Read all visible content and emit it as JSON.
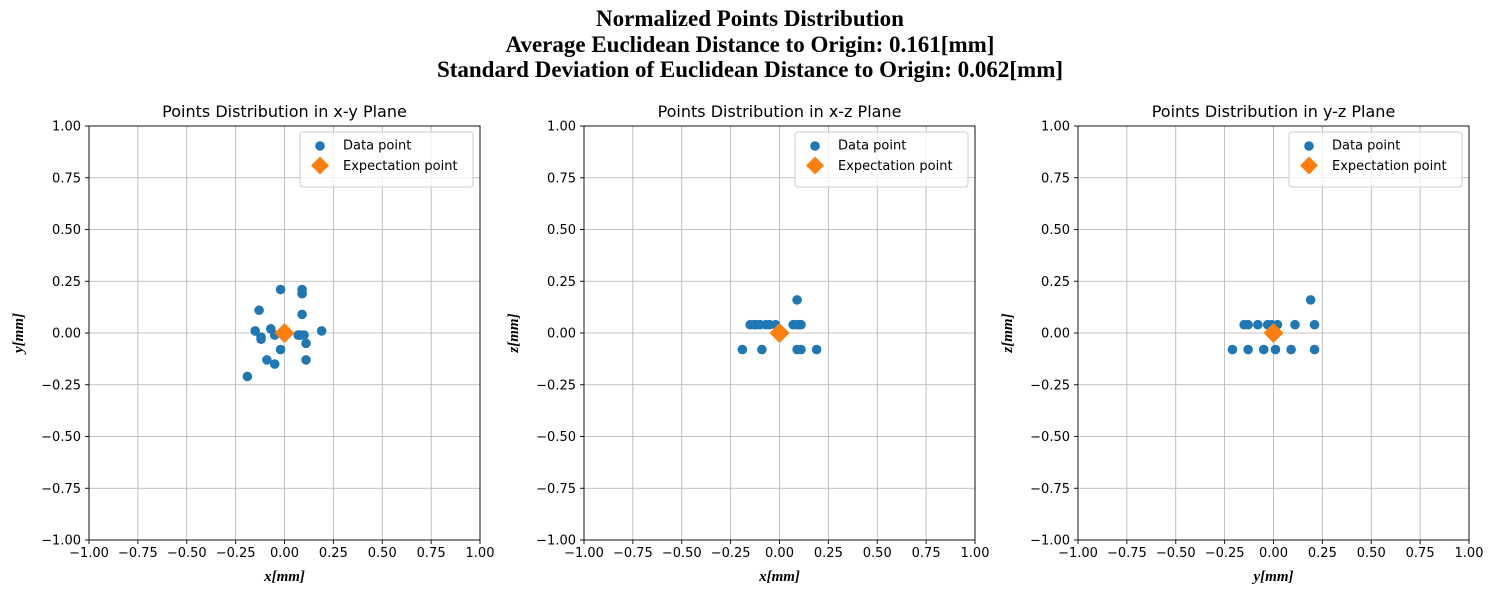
{
  "figure": {
    "title_lines": [
      "Normalized Points Distribution",
      "Average Euclidean Distance to Origin: 0.161[mm]",
      "Standard Deviation of Euclidean Distance to Origin: 0.062[mm]"
    ]
  },
  "colors": {
    "data_point": "#1f77b4",
    "expectation_point": "#ff7f0e",
    "grid": "#b0b0b0",
    "axis": "#000000"
  },
  "chart_data": [
    {
      "type": "scatter",
      "title": "Points Distribution in x-y Plane",
      "xlabel": "x[mm]",
      "ylabel": "y[mm]",
      "xlim": [
        -1,
        1
      ],
      "ylim": [
        -1,
        1
      ],
      "ticks": [
        -1.0,
        -0.75,
        -0.5,
        -0.25,
        0.0,
        0.25,
        0.5,
        0.75,
        1.0
      ],
      "tick_labels": [
        "−1.00",
        "−0.75",
        "−0.50",
        "−0.25",
        "0.00",
        "0.25",
        "0.50",
        "0.75",
        "1.00"
      ],
      "grid": true,
      "legend_position": "top-right",
      "series": [
        {
          "name": "Data point",
          "marker": "circle",
          "points": [
            [
              -0.19,
              -0.21
            ],
            [
              -0.15,
              0.01
            ],
            [
              -0.13,
              0.11
            ],
            [
              -0.12,
              -0.03
            ],
            [
              -0.12,
              -0.02
            ],
            [
              -0.09,
              -0.13
            ],
            [
              -0.07,
              0.02
            ],
            [
              -0.05,
              -0.15
            ],
            [
              -0.05,
              -0.01
            ],
            [
              -0.02,
              0.21
            ],
            [
              -0.02,
              -0.08
            ],
            [
              0.07,
              -0.01
            ],
            [
              0.08,
              -0.01
            ],
            [
              0.09,
              0.09
            ],
            [
              0.09,
              0.19
            ],
            [
              0.09,
              0.21
            ],
            [
              0.1,
              -0.01
            ],
            [
              0.11,
              -0.05
            ],
            [
              0.11,
              -0.13
            ],
            [
              0.19,
              0.01
            ]
          ]
        },
        {
          "name": "Expectation point",
          "marker": "diamond",
          "points": [
            [
              0.0,
              0.0
            ]
          ]
        }
      ]
    },
    {
      "type": "scatter",
      "title": "Points Distribution in x-z Plane",
      "xlabel": "x[mm]",
      "ylabel": "z[mm]",
      "xlim": [
        -1,
        1
      ],
      "ylim": [
        -1,
        1
      ],
      "ticks": [
        -1.0,
        -0.75,
        -0.5,
        -0.25,
        0.0,
        0.25,
        0.5,
        0.75,
        1.0
      ],
      "tick_labels": [
        "−1.00",
        "−0.75",
        "−0.50",
        "−0.25",
        "0.00",
        "0.25",
        "0.50",
        "0.75",
        "1.00"
      ],
      "grid": true,
      "legend_position": "top-right",
      "series": [
        {
          "name": "Data point",
          "marker": "circle",
          "points": [
            [
              -0.19,
              -0.08
            ],
            [
              -0.15,
              0.04
            ],
            [
              -0.13,
              0.04
            ],
            [
              -0.12,
              0.04
            ],
            [
              -0.1,
              0.04
            ],
            [
              -0.09,
              -0.08
            ],
            [
              -0.07,
              0.04
            ],
            [
              -0.05,
              0.04
            ],
            [
              -0.02,
              0.04
            ],
            [
              0.07,
              0.04
            ],
            [
              0.09,
              0.04
            ],
            [
              0.09,
              0.16
            ],
            [
              0.09,
              -0.08
            ],
            [
              0.1,
              0.04
            ],
            [
              0.11,
              -0.08
            ],
            [
              0.11,
              0.04
            ],
            [
              0.19,
              -0.08
            ]
          ]
        },
        {
          "name": "Expectation point",
          "marker": "diamond",
          "points": [
            [
              0.0,
              0.0
            ]
          ]
        }
      ]
    },
    {
      "type": "scatter",
      "title": "Points Distribution in y-z Plane",
      "xlabel": "y[mm]",
      "ylabel": "z[mm]",
      "xlim": [
        -1,
        1
      ],
      "ylim": [
        -1,
        1
      ],
      "ticks": [
        -1.0,
        -0.75,
        -0.5,
        -0.25,
        0.0,
        0.25,
        0.5,
        0.75,
        1.0
      ],
      "tick_labels": [
        "−1.00",
        "−0.75",
        "−0.50",
        "−0.25",
        "0.00",
        "0.25",
        "0.50",
        "0.75",
        "1.00"
      ],
      "grid": true,
      "legend_position": "top-right",
      "series": [
        {
          "name": "Data point",
          "marker": "circle",
          "points": [
            [
              -0.21,
              -0.08
            ],
            [
              -0.15,
              0.04
            ],
            [
              -0.13,
              0.04
            ],
            [
              -0.13,
              -0.08
            ],
            [
              -0.08,
              0.04
            ],
            [
              -0.05,
              -0.08
            ],
            [
              -0.03,
              0.04
            ],
            [
              -0.01,
              0.04
            ],
            [
              0.01,
              -0.08
            ],
            [
              0.02,
              0.04
            ],
            [
              0.09,
              -0.08
            ],
            [
              0.11,
              0.04
            ],
            [
              0.19,
              0.16
            ],
            [
              0.21,
              0.04
            ],
            [
              0.21,
              -0.08
            ]
          ]
        },
        {
          "name": "Expectation point",
          "marker": "diamond",
          "points": [
            [
              0.0,
              0.0
            ]
          ]
        }
      ]
    }
  ]
}
